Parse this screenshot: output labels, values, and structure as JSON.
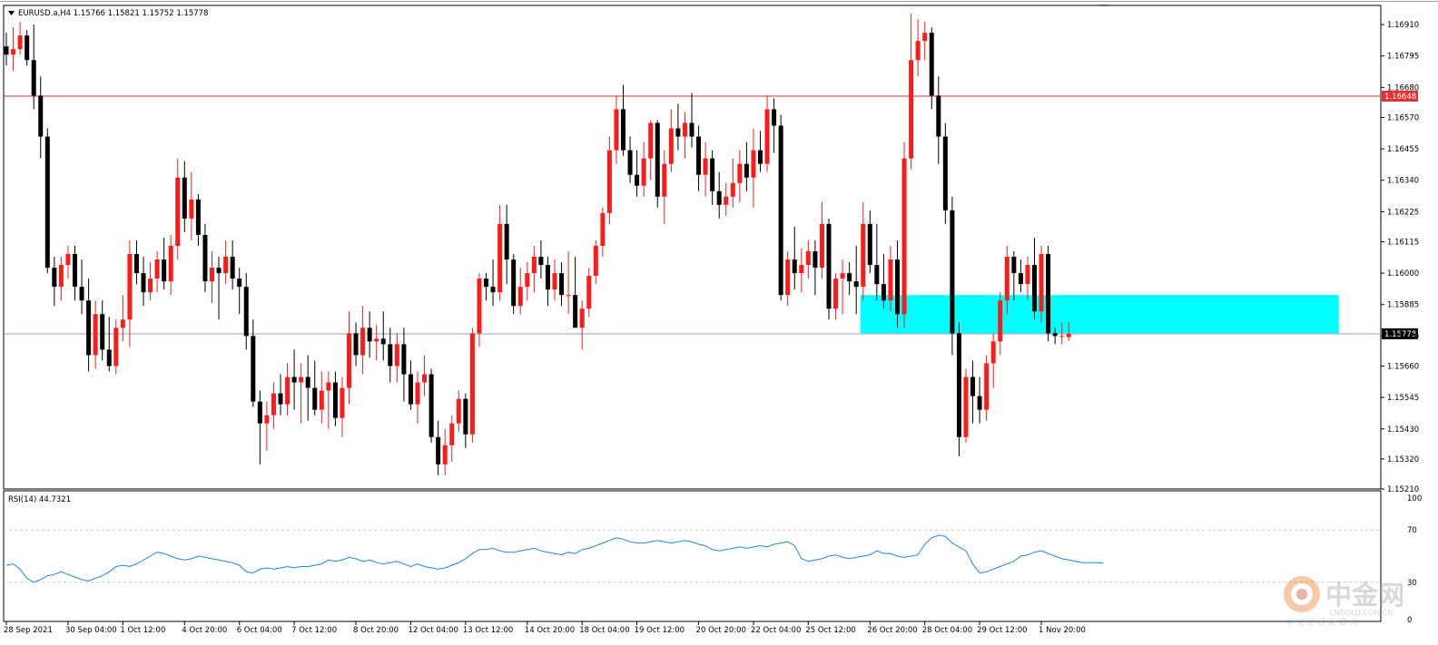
{
  "window": {
    "symbol_info": "EURUSD.a,H4  1.15766 1.15821 1.15752 1.15778",
    "rsi_info": "RSI(14) 44.7321"
  },
  "colors": {
    "bull": "#ff1a1a",
    "bear": "#000000",
    "resistance_line": "#e03030",
    "current_line": "#8aa2b8",
    "zone": "#00ffff",
    "rsi_line": "#1e88e5",
    "grid": "#c8c8c8"
  },
  "levels": {
    "resistance": "1.16648",
    "current": "1.15778"
  },
  "zone": {
    "low": 1.1578,
    "high": 1.1592
  },
  "watermark": {
    "name": "中金网",
    "domain": "CNGOLD.COM.CN",
    "slogan": "中 文 财 经 新 媒 体"
  },
  "chart_data": [
    {
      "type": "candlestick",
      "title": "EURUSD.a,H4",
      "timeframe": "H4",
      "ohlc_header": {
        "open": 1.15766,
        "high": 1.15821,
        "low": 1.15752,
        "close": 1.15778
      },
      "y_ticks": [
        "1.16910",
        "1.16795",
        "1.16680",
        "1.16570",
        "1.16455",
        "1.16340",
        "1.16225",
        "1.16115",
        "1.16000",
        "1.15885",
        "1.15770",
        "1.15660",
        "1.15545",
        "1.15430",
        "1.15320",
        "1.15210"
      ],
      "ylim": [
        1.1521,
        1.1698
      ],
      "x_ticks": [
        "28 Sep 2021",
        "30 Sep 04:00",
        "1 Oct 12:00",
        "4 Oct 20:00",
        "6 Oct 04:00",
        "7 Oct 12:00",
        "8 Oct 20:00",
        "12 Oct 04:00",
        "13 Oct 12:00",
        "14 Oct 20:00",
        "18 Oct 04:00",
        "19 Oct 12:00",
        "20 Oct 20:00",
        "22 Oct 04:00",
        "25 Oct 12:00",
        "26 Oct 20:00",
        "28 Oct 04:00",
        "29 Oct 12:00",
        "1 Nov 20:00"
      ],
      "horizontal_lines": [
        {
          "value": 1.16648,
          "label": "1.16648"
        },
        {
          "value": 1.15778,
          "label": "1.15778"
        }
      ],
      "rectangles": [
        {
          "from_bar": 125,
          "to_bar": 194,
          "low": 1.1578,
          "high": 1.1592
        }
      ],
      "candles": [
        [
          1.1683,
          1.1688,
          1.1676,
          1.168
        ],
        [
          1.168,
          1.169,
          1.1674,
          1.1682
        ],
        [
          1.1682,
          1.1692,
          1.168,
          1.1687
        ],
        [
          1.1687,
          1.1689,
          1.1676,
          1.1678
        ],
        [
          1.1678,
          1.1691,
          1.166,
          1.1665
        ],
        [
          1.1665,
          1.1672,
          1.1642,
          1.165
        ],
        [
          1.165,
          1.1653,
          1.16,
          1.1602
        ],
        [
          1.1602,
          1.1606,
          1.1588,
          1.1595
        ],
        [
          1.1595,
          1.1606,
          1.159,
          1.1603
        ],
        [
          1.1603,
          1.161,
          1.1598,
          1.1607
        ],
        [
          1.1607,
          1.161,
          1.159,
          1.1595
        ],
        [
          1.1595,
          1.1605,
          1.1585,
          1.159
        ],
        [
          1.159,
          1.1598,
          1.1564,
          1.157
        ],
        [
          1.157,
          1.159,
          1.1565,
          1.1585
        ],
        [
          1.1585,
          1.159,
          1.1568,
          1.1572
        ],
        [
          1.1572,
          1.1584,
          1.1564,
          1.1566
        ],
        [
          1.1566,
          1.1583,
          1.1563,
          1.158
        ],
        [
          1.158,
          1.1592,
          1.1575,
          1.1583
        ],
        [
          1.1583,
          1.1612,
          1.1573,
          1.1607
        ],
        [
          1.1607,
          1.1612,
          1.1596,
          1.16
        ],
        [
          1.16,
          1.1606,
          1.1588,
          1.1593
        ],
        [
          1.1593,
          1.1604,
          1.159,
          1.1598
        ],
        [
          1.1598,
          1.1608,
          1.1593,
          1.1605
        ],
        [
          1.1605,
          1.1613,
          1.1594,
          1.1597
        ],
        [
          1.1597,
          1.1614,
          1.1592,
          1.161
        ],
        [
          1.161,
          1.1642,
          1.1605,
          1.1635
        ],
        [
          1.1635,
          1.1641,
          1.1615,
          1.162
        ],
        [
          1.162,
          1.1637,
          1.1612,
          1.1627
        ],
        [
          1.1627,
          1.1629,
          1.161,
          1.1614
        ],
        [
          1.1614,
          1.1618,
          1.1593,
          1.1597
        ],
        [
          1.1597,
          1.1608,
          1.1589,
          1.1602
        ],
        [
          1.1602,
          1.1606,
          1.1583,
          1.16
        ],
        [
          1.16,
          1.1612,
          1.1596,
          1.1606
        ],
        [
          1.1606,
          1.1612,
          1.1594,
          1.1598
        ],
        [
          1.1598,
          1.1602,
          1.1585,
          1.1595
        ],
        [
          1.1595,
          1.16,
          1.1572,
          1.1577
        ],
        [
          1.1577,
          1.1583,
          1.1551,
          1.1553
        ],
        [
          1.1553,
          1.1557,
          1.153,
          1.1545
        ],
        [
          1.1545,
          1.1553,
          1.1535,
          1.1548
        ],
        [
          1.1548,
          1.156,
          1.1543,
          1.1556
        ],
        [
          1.1556,
          1.1563,
          1.1548,
          1.1552
        ],
        [
          1.1552,
          1.1567,
          1.1548,
          1.1562
        ],
        [
          1.1562,
          1.1572,
          1.155,
          1.156
        ],
        [
          1.156,
          1.1567,
          1.1545,
          1.1562
        ],
        [
          1.1562,
          1.157,
          1.1546,
          1.1558
        ],
        [
          1.1558,
          1.1568,
          1.1548,
          1.155
        ],
        [
          1.155,
          1.1564,
          1.1545,
          1.1557
        ],
        [
          1.1557,
          1.1564,
          1.1543,
          1.156
        ],
        [
          1.156,
          1.1564,
          1.1544,
          1.1547
        ],
        [
          1.1547,
          1.1562,
          1.154,
          1.1558
        ],
        [
          1.1558,
          1.1586,
          1.1552,
          1.1578
        ],
        [
          1.1578,
          1.1582,
          1.1566,
          1.157
        ],
        [
          1.157,
          1.1588,
          1.1563,
          1.158
        ],
        [
          1.158,
          1.1586,
          1.1569,
          1.1575
        ],
        [
          1.1575,
          1.1581,
          1.1568,
          1.1576
        ],
        [
          1.1576,
          1.1586,
          1.1568,
          1.1574
        ],
        [
          1.1574,
          1.158,
          1.156,
          1.1566
        ],
        [
          1.1566,
          1.1578,
          1.156,
          1.1574
        ],
        [
          1.1574,
          1.158,
          1.1553,
          1.1563
        ],
        [
          1.1563,
          1.1568,
          1.155,
          1.1552
        ],
        [
          1.1552,
          1.1564,
          1.1545,
          1.156
        ],
        [
          1.156,
          1.157,
          1.1555,
          1.1563
        ],
        [
          1.1563,
          1.1565,
          1.1538,
          1.154
        ],
        [
          1.154,
          1.1546,
          1.1526,
          1.153
        ],
        [
          1.153,
          1.1543,
          1.1526,
          1.1537
        ],
        [
          1.1537,
          1.1548,
          1.1531,
          1.1545
        ],
        [
          1.1545,
          1.1557,
          1.1542,
          1.1554
        ],
        [
          1.1554,
          1.1556,
          1.1536,
          1.1541
        ],
        [
          1.1541,
          1.158,
          1.1538,
          1.1578
        ],
        [
          1.1578,
          1.16,
          1.1573,
          1.1598
        ],
        [
          1.1598,
          1.16,
          1.159,
          1.1595
        ],
        [
          1.1595,
          1.1605,
          1.1588,
          1.1593
        ],
        [
          1.1593,
          1.1625,
          1.159,
          1.1618
        ],
        [
          1.1618,
          1.1625,
          1.1596,
          1.1605
        ],
        [
          1.1605,
          1.1607,
          1.1585,
          1.1588
        ],
        [
          1.1588,
          1.1602,
          1.1585,
          1.1595
        ],
        [
          1.1595,
          1.1604,
          1.159,
          1.16
        ],
        [
          1.16,
          1.161,
          1.1593,
          1.1606
        ],
        [
          1.1606,
          1.1612,
          1.1598,
          1.1603
        ],
        [
          1.1603,
          1.1606,
          1.1588,
          1.1594
        ],
        [
          1.1594,
          1.1605,
          1.159,
          1.16
        ],
        [
          1.16,
          1.1604,
          1.1588,
          1.1592
        ],
        [
          1.1592,
          1.1608,
          1.1585,
          1.1592
        ],
        [
          1.1592,
          1.1606,
          1.158,
          1.158
        ],
        [
          1.158,
          1.159,
          1.1572,
          1.1587
        ],
        [
          1.1587,
          1.1602,
          1.1584,
          1.1599
        ],
        [
          1.1599,
          1.1612,
          1.1596,
          1.161
        ],
        [
          1.161,
          1.1624,
          1.1606,
          1.1622
        ],
        [
          1.1622,
          1.165,
          1.1618,
          1.1645
        ],
        [
          1.1645,
          1.1665,
          1.164,
          1.166
        ],
        [
          1.166,
          1.1669,
          1.1643,
          1.1645
        ],
        [
          1.1645,
          1.165,
          1.1633,
          1.1636
        ],
        [
          1.1636,
          1.1645,
          1.1628,
          1.1632
        ],
        [
          1.1632,
          1.1648,
          1.1628,
          1.1642
        ],
        [
          1.1642,
          1.1656,
          1.1634,
          1.1655
        ],
        [
          1.1655,
          1.1656,
          1.1624,
          1.1628
        ],
        [
          1.1628,
          1.1645,
          1.1618,
          1.164
        ],
        [
          1.164,
          1.166,
          1.1637,
          1.1653
        ],
        [
          1.1653,
          1.1662,
          1.1645,
          1.165
        ],
        [
          1.165,
          1.1659,
          1.1642,
          1.1655
        ],
        [
          1.1655,
          1.1666,
          1.1646,
          1.165
        ],
        [
          1.165,
          1.1654,
          1.163,
          1.1636
        ],
        [
          1.1636,
          1.1648,
          1.1628,
          1.1642
        ],
        [
          1.1642,
          1.1645,
          1.1625,
          1.163
        ],
        [
          1.163,
          1.1637,
          1.162,
          1.1625
        ],
        [
          1.1625,
          1.1633,
          1.1621,
          1.1628
        ],
        [
          1.1628,
          1.1642,
          1.1624,
          1.1633
        ],
        [
          1.1633,
          1.1645,
          1.1626,
          1.164
        ],
        [
          1.164,
          1.1648,
          1.163,
          1.1635
        ],
        [
          1.1635,
          1.1653,
          1.1624,
          1.1645
        ],
        [
          1.1645,
          1.1652,
          1.1637,
          1.164
        ],
        [
          1.164,
          1.1665,
          1.1637,
          1.166
        ],
        [
          1.166,
          1.1664,
          1.1644,
          1.1654
        ],
        [
          1.1654,
          1.1658,
          1.159,
          1.1592
        ],
        [
          1.1592,
          1.1608,
          1.1588,
          1.1605
        ],
        [
          1.1605,
          1.1617,
          1.1594,
          1.16
        ],
        [
          1.16,
          1.1609,
          1.1593,
          1.1603
        ],
        [
          1.1603,
          1.1612,
          1.1598,
          1.1608
        ],
        [
          1.1608,
          1.1612,
          1.1592,
          1.1602
        ],
        [
          1.1602,
          1.1626,
          1.1598,
          1.1618
        ],
        [
          1.1618,
          1.162,
          1.1583,
          1.1587
        ],
        [
          1.1587,
          1.16,
          1.1583,
          1.1598
        ],
        [
          1.1598,
          1.1605,
          1.1585,
          1.16
        ],
        [
          1.16,
          1.1604,
          1.1592,
          1.1597
        ],
        [
          1.1597,
          1.161,
          1.1585,
          1.1595
        ],
        [
          1.1595,
          1.1626,
          1.159,
          1.1618
        ],
        [
          1.1618,
          1.1623,
          1.16,
          1.1603
        ],
        [
          1.1603,
          1.1618,
          1.159,
          1.1596
        ],
        [
          1.1596,
          1.1607,
          1.1587,
          1.159
        ],
        [
          1.159,
          1.161,
          1.1586,
          1.1605
        ],
        [
          1.1605,
          1.1612,
          1.158,
          1.1585
        ],
        [
          1.1585,
          1.1648,
          1.158,
          1.1642
        ],
        [
          1.1642,
          1.1695,
          1.1638,
          1.1678
        ],
        [
          1.1678,
          1.1693,
          1.1672,
          1.1685
        ],
        [
          1.1685,
          1.1692,
          1.1678,
          1.1688
        ],
        [
          1.1688,
          1.169,
          1.166,
          1.1665
        ],
        [
          1.1665,
          1.1672,
          1.164,
          1.165
        ],
        [
          1.165,
          1.1655,
          1.1618,
          1.1623
        ],
        [
          1.1623,
          1.1628,
          1.157,
          1.1578
        ],
        [
          1.1578,
          1.1582,
          1.1533,
          1.154
        ],
        [
          1.154,
          1.1565,
          1.1538,
          1.1562
        ],
        [
          1.1562,
          1.1568,
          1.1545,
          1.1555
        ],
        [
          1.1555,
          1.1562,
          1.1545,
          1.155
        ],
        [
          1.155,
          1.157,
          1.1546,
          1.1567
        ],
        [
          1.1567,
          1.1578,
          1.1558,
          1.1575
        ],
        [
          1.1575,
          1.1593,
          1.157,
          1.159
        ],
        [
          1.159,
          1.161,
          1.1585,
          1.1606
        ],
        [
          1.1606,
          1.1608,
          1.159,
          1.16
        ],
        [
          1.16,
          1.1605,
          1.1593,
          1.1596
        ],
        [
          1.1596,
          1.1606,
          1.159,
          1.1603
        ],
        [
          1.1603,
          1.1613,
          1.1583,
          1.1586
        ],
        [
          1.1586,
          1.161,
          1.1582,
          1.1607
        ],
        [
          1.1607,
          1.161,
          1.1575,
          1.1578
        ],
        [
          1.1578,
          1.158,
          1.1574,
          1.1577
        ],
        [
          1.1577,
          1.1582,
          1.1574,
          1.1577
        ],
        [
          1.15766,
          1.15821,
          1.15752,
          1.15778
        ]
      ]
    },
    {
      "type": "line",
      "title": "RSI(14) 44.7321",
      "ylim": [
        0,
        100
      ],
      "y_ticks": [
        "100",
        "70",
        "30",
        "0"
      ],
      "levels": [
        70,
        30
      ],
      "values": [
        43,
        44,
        40,
        33,
        30,
        32,
        35,
        36,
        38,
        36,
        34,
        32,
        31,
        33,
        35,
        38,
        42,
        43,
        42,
        44,
        47,
        50,
        53,
        52,
        50,
        48,
        47,
        48,
        50,
        49,
        48,
        47,
        46,
        45,
        43,
        38,
        37,
        40,
        41,
        40,
        41,
        42,
        41,
        42,
        42,
        43,
        44,
        47,
        46,
        47,
        49,
        48,
        46,
        47,
        45,
        44,
        45,
        46,
        44,
        42,
        44,
        42,
        41,
        40,
        41,
        43,
        45,
        48,
        52,
        55,
        55,
        56,
        54,
        53,
        53,
        54,
        55,
        56,
        54,
        53,
        52,
        51,
        53,
        52,
        55,
        56,
        58,
        60,
        62,
        64,
        63,
        61,
        60,
        60,
        61,
        62,
        61,
        60,
        61,
        62,
        61,
        59,
        58,
        55,
        54,
        55,
        56,
        57,
        56,
        57,
        58,
        57,
        59,
        60,
        61,
        58,
        48,
        46,
        47,
        48,
        50,
        51,
        49,
        48,
        49,
        50,
        51,
        54,
        52,
        52,
        50,
        49,
        50,
        51,
        59,
        64,
        66,
        65,
        60,
        57,
        54,
        44,
        37,
        38,
        40,
        42,
        44,
        46,
        50,
        51,
        53,
        54,
        52,
        50,
        48,
        47,
        46,
        45,
        45,
        45,
        44.7
      ]
    }
  ]
}
